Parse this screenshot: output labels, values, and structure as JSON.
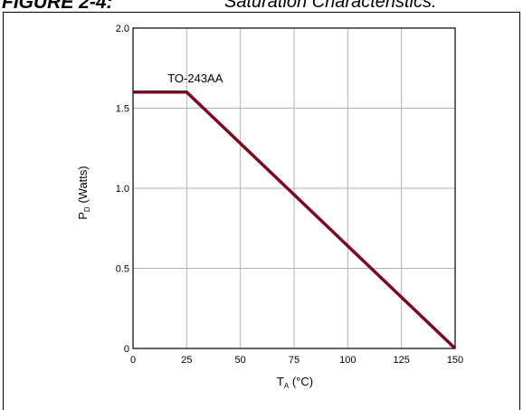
{
  "header": {
    "figure_number": "FIGURE 2-4:",
    "caption": "Saturation Characteristics."
  },
  "colors": {
    "series": "#7a0a22",
    "grid": "#b0b0b0",
    "frame": "#000000"
  },
  "chart_data": {
    "type": "line",
    "title": "",
    "xlabel": {
      "main": "T",
      "sub": "A",
      "rest": " (°C)"
    },
    "ylabel": {
      "main": "P",
      "sub": "D",
      "rest": " (Watts)"
    },
    "xlim": [
      0,
      150
    ],
    "ylim": [
      0,
      2.0
    ],
    "x_ticks": [
      0,
      25,
      50,
      75,
      100,
      125,
      150
    ],
    "x_tick_labels": [
      "0",
      "25",
      "50",
      "75",
      "100",
      "125",
      "150"
    ],
    "y_ticks": [
      0,
      0.5,
      1.0,
      1.5,
      2.0
    ],
    "y_tick_labels": [
      "0",
      "0.5",
      "1.0",
      "1.5",
      "2.0"
    ],
    "grid": true,
    "series": [
      {
        "name": "TO-243AA",
        "x": [
          0,
          25,
          150
        ],
        "y": [
          1.6,
          1.6,
          0
        ]
      }
    ],
    "annotations": [
      {
        "text": "TO-243AA",
        "x": 29,
        "y": 1.66
      }
    ]
  }
}
